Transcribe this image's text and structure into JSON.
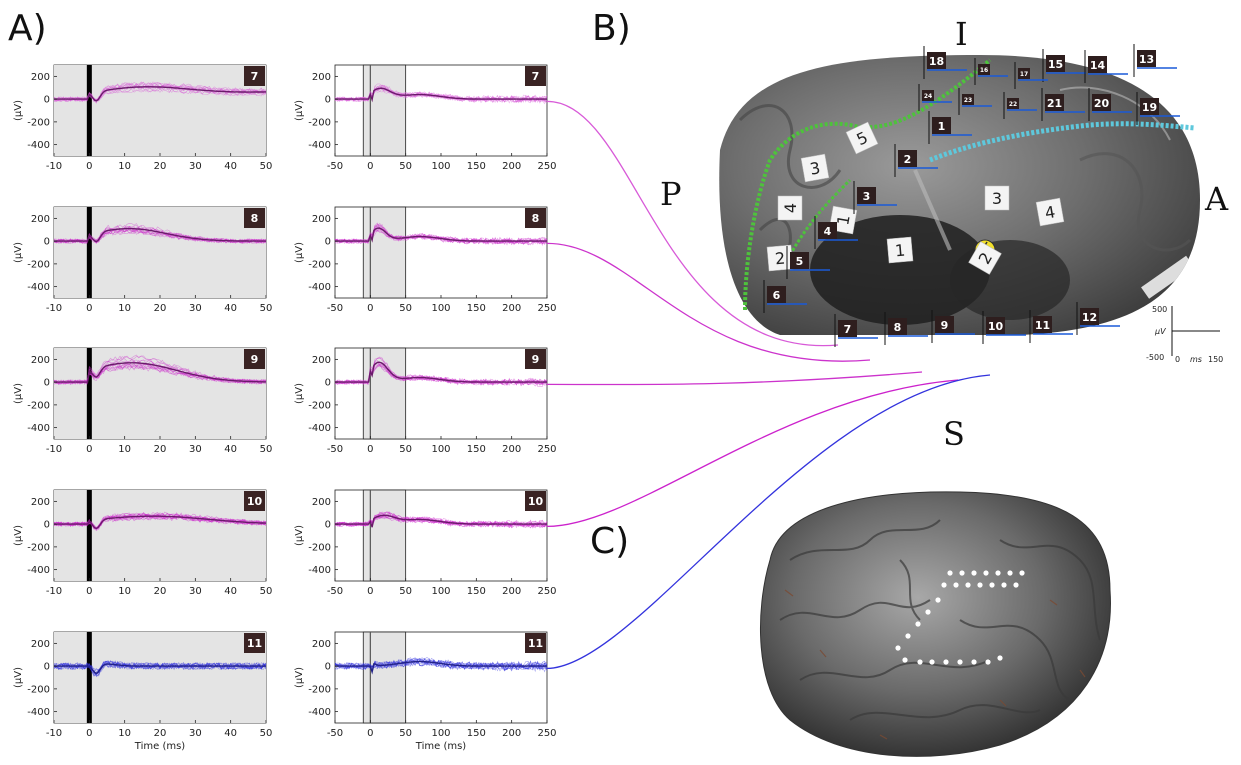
{
  "panel_labels": {
    "a": "A)",
    "b": "B)",
    "c": "C)"
  },
  "orientation": {
    "top": "I",
    "bottom": "S",
    "left": "P",
    "right": "A"
  },
  "scale_bar": {
    "top": "500",
    "bottom": "-500",
    "unit_y": "µV",
    "x_start": "0",
    "unit_x": "ms",
    "x_end": "150"
  },
  "photo_labels": [
    "1",
    "2",
    "3",
    "4",
    "1",
    "2",
    "3",
    "4",
    "5",
    "1",
    "2",
    "3",
    "4"
  ],
  "chart_data": [
    {
      "type": "line",
      "layout_note_free": true,
      "ylabel": "(µV)",
      "xlabel": "Time (ms)",
      "left_xticks": [
        "-10",
        "0",
        "10",
        "20",
        "30",
        "40",
        "50"
      ],
      "right_xticks": [
        "-50",
        "0",
        "50",
        "100",
        "150",
        "200",
        "250"
      ],
      "yticks": [
        "200",
        "0",
        "-200",
        "-400"
      ],
      "left_xlim": [
        -10,
        50
      ],
      "right_xlim": [
        -50,
        250
      ],
      "ylim": [
        -500,
        300
      ],
      "rows": [
        {
          "electrode": "7",
          "color": "#d85ad8"
        },
        {
          "electrode": "8",
          "color": "#cc33cc"
        },
        {
          "electrode": "9",
          "color": "#cc33cc"
        },
        {
          "electrode": "10",
          "color": "#cc22cc"
        },
        {
          "electrode": "11",
          "color": "#3333dd"
        }
      ]
    }
  ],
  "electrode_strips": {
    "bottom": [
      "7",
      "8",
      "9",
      "10",
      "11",
      "12",
      "6",
      "5",
      "4",
      "3",
      "2",
      "1"
    ],
    "top": [
      "18",
      "16",
      "15",
      "14",
      "13",
      "24",
      "23",
      "22",
      "21",
      "20",
      "19",
      "17"
    ]
  }
}
